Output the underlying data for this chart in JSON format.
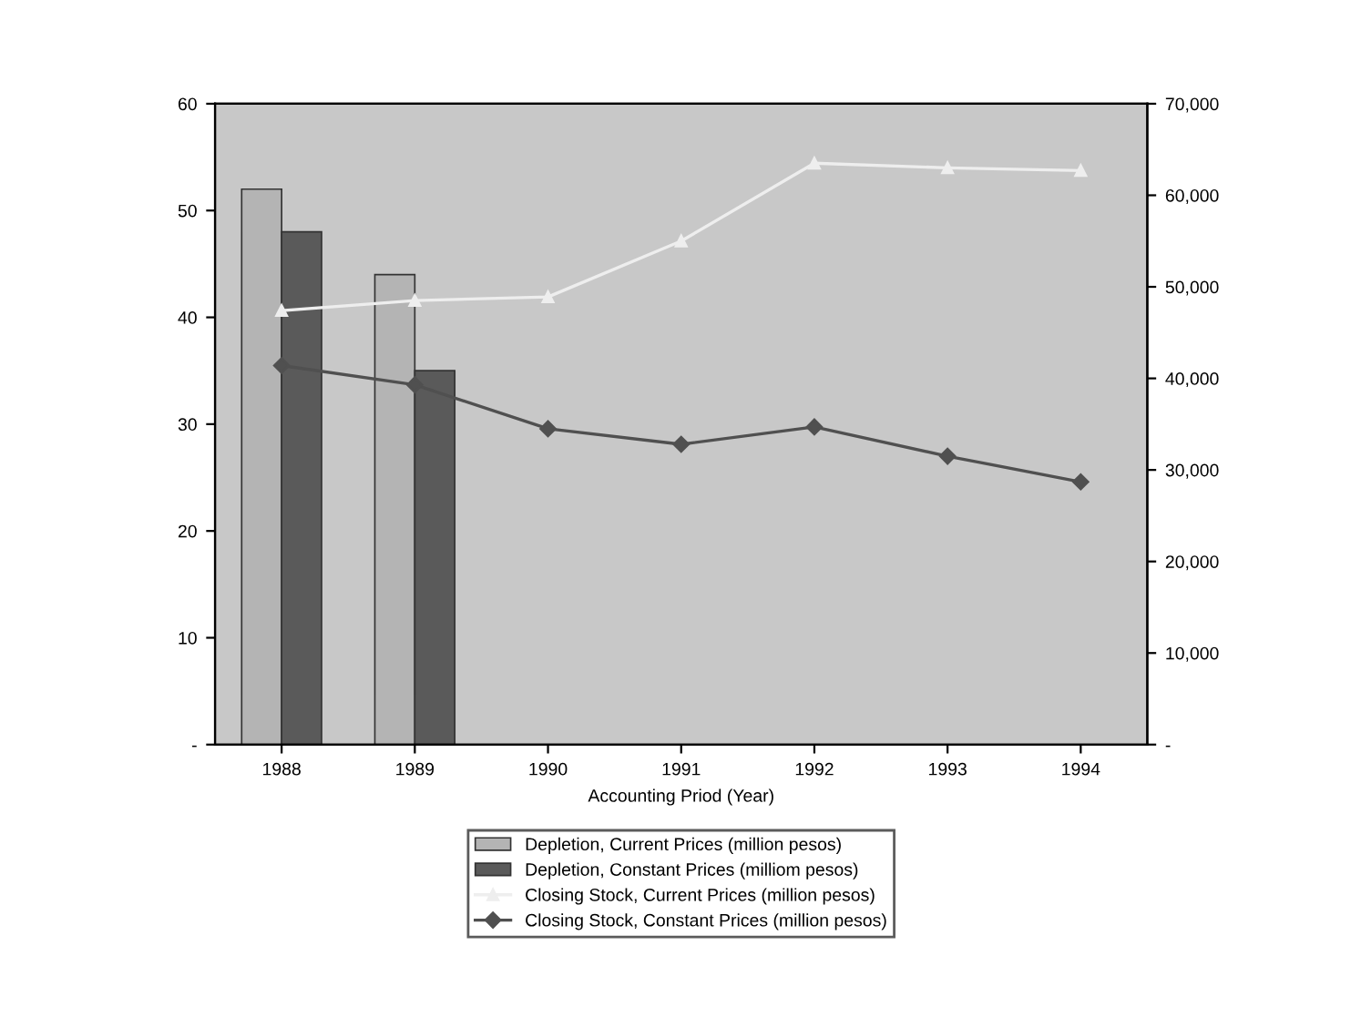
{
  "chart_data": {
    "type": "bar",
    "xlabel": "Accounting Priod (Year)",
    "categories": [
      "1988",
      "1989",
      "1990",
      "1991",
      "1992",
      "1993",
      "1994"
    ],
    "series": [
      {
        "name": "Depletion, Current Prices (million pesos)",
        "color": "#b4b4b4",
        "values": [
          52,
          44,
          null,
          null,
          null,
          null,
          null
        ]
      },
      {
        "name": "Depletion, Constant Prices (milliom pesos)",
        "color": "#5a5a5a",
        "values": [
          48,
          35,
          null,
          null,
          null,
          null,
          null
        ]
      },
      {
        "name": "Closing Stock, Current Prices (million pesos)",
        "type": "line",
        "axis": "y2",
        "marker": "triangle",
        "color": "#eeeeee",
        "values": [
          47400,
          48500,
          48900,
          55000,
          63500,
          63000,
          62700
        ]
      },
      {
        "name": "Closing Stock, Constant Prices (million pesos)",
        "type": "line",
        "axis": "y2",
        "marker": "diamond",
        "color": "#505050",
        "values": [
          41400,
          39300,
          34500,
          32800,
          34700,
          31500,
          28700
        ]
      }
    ],
    "ylim": [
      0,
      60
    ],
    "yticks": [
      {
        "value": 0,
        "label": "-"
      },
      10,
      20,
      30,
      40,
      50,
      60
    ],
    "y2lim": [
      0,
      70000
    ],
    "y2ticks": [
      {
        "value": 0,
        "label": "-"
      },
      {
        "value": 10000,
        "label": "10,000"
      },
      {
        "value": 20000,
        "label": "20,000"
      },
      {
        "value": 30000,
        "label": "30,000"
      },
      {
        "value": 40000,
        "label": "40,000"
      },
      {
        "value": 50000,
        "label": "50,000"
      },
      {
        "value": 60000,
        "label": "60,000"
      },
      {
        "value": 70000,
        "label": "70,000"
      }
    ],
    "grid": false,
    "legend": "bottom"
  }
}
